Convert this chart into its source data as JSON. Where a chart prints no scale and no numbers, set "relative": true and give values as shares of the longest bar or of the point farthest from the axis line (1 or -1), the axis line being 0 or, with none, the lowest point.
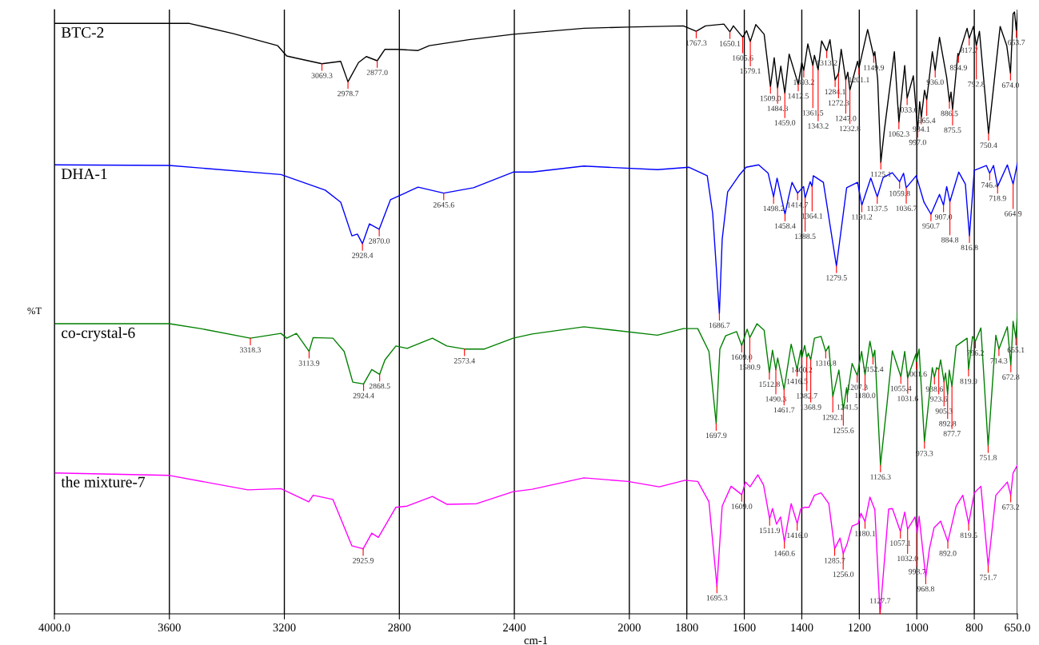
{
  "chart_data": {
    "type": "line",
    "relative": true,
    "xlabel": "cm-1",
    "ylabel": "%T",
    "xlim": [
      4000,
      650
    ],
    "xticks": [
      {
        "value": 4000,
        "label": "4000.0"
      },
      3600,
      3200,
      2800,
      2400,
      2000,
      1800,
      1600,
      1400,
      1200,
      1000,
      800,
      {
        "value": 650,
        "label": "650.0"
      }
    ],
    "grid": "x",
    "legend": false,
    "marker": "none",
    "line_style": "solid",
    "series": [
      {
        "name": "BTC-2",
        "color": "#000000",
        "x": [
          4000,
          3530,
          3377,
          3223,
          3192,
          3165,
          3069.3,
          3004,
          2978.7,
          2942,
          2915,
          2877.0,
          2850,
          2808,
          2735,
          2696,
          2558,
          2404,
          2158,
          2004,
          1812,
          1767.3,
          1735,
          1671,
          1650.1,
          1638,
          1605.6,
          1592,
          1579.1,
          1560,
          1531,
          1509.0,
          1496,
          1484.3,
          1473,
          1459.0,
          1444,
          1412.5,
          1400,
          1393.2,
          1379,
          1361.5,
          1356,
          1343.2,
          1331,
          1313.2,
          1302,
          1284.1,
          1272.3,
          1263,
          1247.0,
          1240,
          1232.8,
          1206,
          1201.1,
          1171,
          1149.9,
          1146,
          1136,
          1125.1,
          1113,
          1078,
          1062.3,
          1042,
          1033.6,
          1012,
          997.0,
          990,
          984.1,
          973,
          965.4,
          946,
          936.0,
          921,
          896,
          886.5,
          881,
          875.5,
          857,
          854.9,
          825,
          817.7,
          803,
          792.8,
          782,
          750.4,
          710,
          687,
          674.0,
          665,
          660,
          653.7,
          650
        ],
        "values": [
          0.981,
          0.981,
          0.964,
          0.944,
          0.927,
          0.924,
          0.914,
          0.918,
          0.884,
          0.916,
          0.926,
          0.919,
          0.938,
          0.938,
          0.936,
          0.944,
          0.954,
          0.963,
          0.973,
          0.975,
          0.977,
          0.968,
          0.977,
          0.98,
          0.967,
          0.977,
          0.958,
          0.969,
          0.951,
          0.979,
          0.963,
          0.876,
          0.924,
          0.874,
          0.91,
          0.865,
          0.93,
          0.88,
          0.916,
          0.903,
          0.947,
          0.911,
          0.928,
          0.904,
          0.952,
          0.935,
          0.954,
          0.887,
          0.898,
          0.938,
          0.887,
          0.9,
          0.87,
          0.918,
          0.907,
          0.971,
          0.927,
          0.934,
          0.887,
          0.75,
          0.803,
          0.934,
          0.817,
          0.911,
          0.857,
          0.894,
          0.803,
          0.851,
          0.825,
          0.87,
          0.854,
          0.934,
          0.903,
          0.958,
          0.891,
          0.851,
          0.867,
          0.838,
          0.931,
          0.927,
          0.973,
          0.956,
          0.976,
          0.944,
          0.968,
          0.798,
          0.976,
          0.944,
          0.898,
          0.997,
          1.0,
          0.969,
          0.997
        ]
      },
      {
        "name": "DHA-1",
        "color": "#0000ff",
        "x": [
          4000,
          3600,
          3212,
          3058,
          3004,
          2965,
          2946,
          2928.4,
          2904,
          2870.0,
          2831,
          2735,
          2645.6,
          2542,
          2404,
          2338,
          2158,
          1902,
          1792,
          1729,
          1710,
          1686.7,
          1677,
          1658,
          1619,
          1594,
          1550,
          1517,
          1498.2,
          1486,
          1458.4,
          1446,
          1434,
          1414.7,
          1394,
          1388.5,
          1371,
          1364.1,
          1360,
          1325,
          1279.5,
          1244,
          1206,
          1191.2,
          1160,
          1137.5,
          1117,
          1085,
          1059.8,
          1046,
          1036.7,
          1002,
          975,
          950.7,
          921,
          907.0,
          896,
          884.8,
          854,
          831,
          816.8,
          800,
          758,
          746.4,
          733,
          718.9,
          685,
          664.9,
          650
        ],
        "values": [
          0.746,
          0.745,
          0.73,
          0.704,
          0.684,
          0.628,
          0.631,
          0.615,
          0.648,
          0.639,
          0.688,
          0.709,
          0.699,
          0.708,
          0.734,
          0.734,
          0.744,
          0.738,
          0.742,
          0.728,
          0.665,
          0.499,
          0.622,
          0.701,
          0.728,
          0.742,
          0.746,
          0.732,
          0.693,
          0.724,
          0.664,
          0.692,
          0.717,
          0.699,
          0.71,
          0.691,
          0.718,
          0.71,
          0.728,
          0.717,
          0.578,
          0.708,
          0.717,
          0.679,
          0.724,
          0.693,
          0.725,
          0.733,
          0.718,
          0.732,
          0.708,
          0.728,
          0.684,
          0.664,
          0.697,
          0.679,
          0.71,
          0.685,
          0.734,
          0.714,
          0.628,
          0.737,
          0.745,
          0.732,
          0.745,
          0.71,
          0.746,
          0.714,
          0.749
        ]
      },
      {
        "name": "co-crystal-6",
        "color": "#008000",
        "x": [
          4000,
          3600,
          3492,
          3318.3,
          3212,
          3192,
          3158,
          3113.9,
          3100,
          3031,
          2992,
          2962,
          2924.4,
          2896,
          2868.5,
          2850,
          2812,
          2773,
          2685,
          2635,
          2573.4,
          2504,
          2404,
          2338,
          2158,
          1902,
          1812,
          1762,
          1723,
          1697.9,
          1685,
          1665,
          1627,
          1609.0,
          1590,
          1580.9,
          1556,
          1531,
          1512.8,
          1502,
          1490.3,
          1484,
          1461.7,
          1437,
          1416.5,
          1404,
          1400.2,
          1390,
          1382.7,
          1377,
          1368.9,
          1356,
          1333,
          1316.8,
          1306,
          1292.1,
          1271,
          1255.6,
          1244,
          1241.5,
          1225,
          1207.3,
          1192,
          1180.0,
          1163,
          1152.4,
          1146,
          1126.3,
          1104,
          1085,
          1055.4,
          1042,
          1031.6,
          1003,
          1001.6,
          992,
          973.3,
          946,
          938.6,
          931,
          923.6,
          917,
          905.3,
          900,
          892.8,
          887,
          877.7,
          863,
          825,
          819.9,
          806,
          796.2,
          777,
          751.8,
          725,
          714.3,
          685,
          672.8,
          665,
          655.1,
          650
        ],
        "values": [
          0.482,
          0.482,
          0.474,
          0.458,
          0.466,
          0.458,
          0.466,
          0.436,
          0.459,
          0.458,
          0.436,
          0.385,
          0.382,
          0.406,
          0.398,
          0.422,
          0.445,
          0.441,
          0.458,
          0.445,
          0.44,
          0.44,
          0.458,
          0.465,
          0.477,
          0.463,
          0.474,
          0.474,
          0.436,
          0.316,
          0.44,
          0.462,
          0.469,
          0.446,
          0.473,
          0.459,
          0.482,
          0.471,
          0.401,
          0.438,
          0.406,
          0.425,
          0.373,
          0.448,
          0.406,
          0.438,
          0.425,
          0.446,
          0.426,
          0.433,
          0.422,
          0.458,
          0.461,
          0.436,
          0.445,
          0.361,
          0.405,
          0.339,
          0.376,
          0.363,
          0.416,
          0.396,
          0.436,
          0.397,
          0.453,
          0.426,
          0.438,
          0.247,
          0.347,
          0.437,
          0.394,
          0.436,
          0.392,
          0.432,
          0.418,
          0.44,
          0.286,
          0.409,
          0.393,
          0.409,
          0.406,
          0.422,
          0.386,
          0.4,
          0.365,
          0.405,
          0.378,
          0.445,
          0.458,
          0.406,
          0.461,
          0.453,
          0.475,
          0.279,
          0.463,
          0.44,
          0.477,
          0.413,
          0.486,
          0.458,
          0.499
        ]
      },
      {
        "name": "the mixture-7",
        "color": "#ff00ff",
        "x": [
          4000,
          3600,
          3327,
          3212,
          3115,
          3100,
          3031,
          2965,
          2925.9,
          2896,
          2873,
          2812,
          2773,
          2685,
          2635,
          2531,
          2404,
          2338,
          2158,
          2004,
          1896,
          1806,
          1762,
          1723,
          1695.3,
          1677,
          1646,
          1609.0,
          1596,
          1580,
          1553,
          1533,
          1511.9,
          1502,
          1488,
          1474,
          1460.6,
          1437,
          1416.0,
          1404,
          1390,
          1375,
          1356,
          1333,
          1306,
          1285.7,
          1267,
          1256.0,
          1242,
          1225,
          1204,
          1194,
          1180.1,
          1163,
          1146,
          1127.7,
          1098,
          1085,
          1057.1,
          1042,
          1032.0,
          1006,
          998.7,
          992,
          968.8,
          956,
          940,
          917,
          892.0,
          863,
          840,
          819.5,
          800,
          777,
          751.7,
          725,
          685,
          673.2,
          665,
          650
        ],
        "values": [
          0.234,
          0.23,
          0.206,
          0.208,
          0.186,
          0.197,
          0.19,
          0.113,
          0.108,
          0.134,
          0.127,
          0.177,
          0.179,
          0.195,
          0.182,
          0.183,
          0.203,
          0.207,
          0.226,
          0.22,
          0.211,
          0.222,
          0.22,
          0.186,
          0.046,
          0.179,
          0.212,
          0.198,
          0.219,
          0.211,
          0.231,
          0.214,
          0.158,
          0.175,
          0.149,
          0.161,
          0.12,
          0.183,
          0.15,
          0.174,
          0.177,
          0.177,
          0.197,
          0.201,
          0.183,
          0.108,
          0.126,
          0.1,
          0.117,
          0.146,
          0.15,
          0.167,
          0.153,
          0.194,
          0.173,
          0,
          0.174,
          0.175,
          0.137,
          0.169,
          0.141,
          0.161,
          0.134,
          0.162,
          0.061,
          0.108,
          0.143,
          0.154,
          0.12,
          0.179,
          0.197,
          0.15,
          0.201,
          0.212,
          0.08,
          0.197,
          0.219,
          0.197,
          0.234,
          0.247
        ]
      }
    ],
    "annotations": [
      {
        "text": "3069.3",
        "x": 3069.3,
        "y": 0.914
      },
      {
        "text": "2978.7",
        "x": 2978.7,
        "y": 0.884
      },
      {
        "text": "2877.0",
        "x": 2877.0,
        "y": 0.919
      },
      {
        "text": "1767.3",
        "x": 1767.3,
        "y": 0.968
      },
      {
        "text": "1650.1",
        "x": 1650.1,
        "y": 0.967
      },
      {
        "text": "1605.6",
        "x": 1605.6,
        "y": 0.958
      },
      {
        "text": "1579.1",
        "x": 1579.1,
        "y": 0.951
      },
      {
        "text": "1509.0",
        "x": 1509.0,
        "y": 0.876
      },
      {
        "text": "1484.3",
        "x": 1484.3,
        "y": 0.874
      },
      {
        "text": "1459.0",
        "x": 1459.0,
        "y": 0.865
      },
      {
        "text": "1412.5",
        "x": 1412.5,
        "y": 0.88
      },
      {
        "text": "1393.2",
        "x": 1393.2,
        "y": 0.903
      },
      {
        "text": "1361.5",
        "x": 1361.5,
        "y": 0.911
      },
      {
        "text": "1343.2",
        "x": 1343.2,
        "y": 0.904
      },
      {
        "text": "1313.2",
        "x": 1313.2,
        "y": 0.935
      },
      {
        "text": "1284.1",
        "x": 1284.1,
        "y": 0.887
      },
      {
        "text": "1272.3",
        "x": 1272.3,
        "y": 0.898
      },
      {
        "text": "1247.0",
        "x": 1247.0,
        "y": 0.887
      },
      {
        "text": "1232.8",
        "x": 1232.8,
        "y": 0.87
      },
      {
        "text": "1201.1",
        "x": 1201.1,
        "y": 0.907
      },
      {
        "text": "1149.9",
        "x": 1149.9,
        "y": 0.927
      },
      {
        "text": "1125.1",
        "x": 1125.1,
        "y": 0.75
      },
      {
        "text": "1062.3",
        "x": 1062.3,
        "y": 0.817
      },
      {
        "text": "1033.6",
        "x": 1033.6,
        "y": 0.857
      },
      {
        "text": "997.0",
        "x": 997.0,
        "y": 0.803
      },
      {
        "text": "984.1",
        "x": 984.1,
        "y": 0.825
      },
      {
        "text": "965.4",
        "x": 965.4,
        "y": 0.854
      },
      {
        "text": "936.0",
        "x": 936.0,
        "y": 0.903
      },
      {
        "text": "886.5",
        "x": 886.5,
        "y": 0.851
      },
      {
        "text": "875.5",
        "x": 875.5,
        "y": 0.838
      },
      {
        "text": "854.9",
        "x": 854.9,
        "y": 0.927
      },
      {
        "text": "817.7",
        "x": 817.7,
        "y": 0.956
      },
      {
        "text": "792.8",
        "x": 792.8,
        "y": 0.944
      },
      {
        "text": "750.4",
        "x": 750.4,
        "y": 0.798
      },
      {
        "text": "674.0",
        "x": 674.0,
        "y": 0.898
      },
      {
        "text": "653.7",
        "x": 653.7,
        "y": 0.969
      },
      {
        "text": "2928.4",
        "x": 2928.4,
        "y": 0.615
      },
      {
        "text": "2870.0",
        "x": 2870.0,
        "y": 0.639
      },
      {
        "text": "2645.6",
        "x": 2645.6,
        "y": 0.699
      },
      {
        "text": "1686.7",
        "x": 1686.7,
        "y": 0.499
      },
      {
        "text": "1498.2",
        "x": 1498.2,
        "y": 0.693
      },
      {
        "text": "1458.4",
        "x": 1458.4,
        "y": 0.664
      },
      {
        "text": "1414.7",
        "x": 1414.7,
        "y": 0.699
      },
      {
        "text": "1388.5",
        "x": 1388.5,
        "y": 0.691
      },
      {
        "text": "1364.1",
        "x": 1364.1,
        "y": 0.71
      },
      {
        "text": "1279.5",
        "x": 1279.5,
        "y": 0.578
      },
      {
        "text": "1191.2",
        "x": 1191.2,
        "y": 0.679
      },
      {
        "text": "1137.5",
        "x": 1137.5,
        "y": 0.693
      },
      {
        "text": "1059.8",
        "x": 1059.8,
        "y": 0.718
      },
      {
        "text": "1036.7",
        "x": 1036.7,
        "y": 0.708
      },
      {
        "text": "950.7",
        "x": 950.7,
        "y": 0.664
      },
      {
        "text": "907.0",
        "x": 907.0,
        "y": 0.679
      },
      {
        "text": "884.8",
        "x": 884.8,
        "y": 0.685
      },
      {
        "text": "816.8",
        "x": 816.8,
        "y": 0.628
      },
      {
        "text": "746.4",
        "x": 746.4,
        "y": 0.732
      },
      {
        "text": "718.9",
        "x": 718.9,
        "y": 0.71
      },
      {
        "text": "664.9",
        "x": 664.9,
        "y": 0.714
      },
      {
        "text": "3318.3",
        "x": 3318.3,
        "y": 0.458
      },
      {
        "text": "3113.9",
        "x": 3113.9,
        "y": 0.436
      },
      {
        "text": "2924.4",
        "x": 2924.4,
        "y": 0.382
      },
      {
        "text": "2868.5",
        "x": 2868.5,
        "y": 0.398
      },
      {
        "text": "2573.4",
        "x": 2573.4,
        "y": 0.44
      },
      {
        "text": "1697.9",
        "x": 1697.9,
        "y": 0.316
      },
      {
        "text": "1609.0",
        "x": 1609.0,
        "y": 0.446
      },
      {
        "text": "1580.9",
        "x": 1580.9,
        "y": 0.459
      },
      {
        "text": "1512.8",
        "x": 1512.8,
        "y": 0.401
      },
      {
        "text": "1490.3",
        "x": 1490.3,
        "y": 0.406
      },
      {
        "text": "1461.7",
        "x": 1461.7,
        "y": 0.373
      },
      {
        "text": "1416.5",
        "x": 1416.5,
        "y": 0.406
      },
      {
        "text": "1400.2",
        "x": 1400.2,
        "y": 0.425
      },
      {
        "text": "1382.7",
        "x": 1382.7,
        "y": 0.426
      },
      {
        "text": "1368.9",
        "x": 1368.9,
        "y": 0.422
      },
      {
        "text": "1316.8",
        "x": 1316.8,
        "y": 0.436
      },
      {
        "text": "1292.1",
        "x": 1292.1,
        "y": 0.361
      },
      {
        "text": "1255.6",
        "x": 1255.6,
        "y": 0.339
      },
      {
        "text": "1241.5",
        "x": 1241.5,
        "y": 0.363
      },
      {
        "text": "1207.3",
        "x": 1207.3,
        "y": 0.396
      },
      {
        "text": "1180.0",
        "x": 1180.0,
        "y": 0.397
      },
      {
        "text": "1152.4",
        "x": 1152.4,
        "y": 0.426
      },
      {
        "text": "1126.3",
        "x": 1126.3,
        "y": 0.247
      },
      {
        "text": "1055.4",
        "x": 1055.4,
        "y": 0.394
      },
      {
        "text": "1031.6",
        "x": 1031.6,
        "y": 0.392
      },
      {
        "text": "1001.6",
        "x": 1001.6,
        "y": 0.418
      },
      {
        "text": "973.3",
        "x": 973.3,
        "y": 0.286
      },
      {
        "text": "938.6",
        "x": 938.6,
        "y": 0.393
      },
      {
        "text": "923.6",
        "x": 923.6,
        "y": 0.406
      },
      {
        "text": "905.3",
        "x": 905.3,
        "y": 0.386
      },
      {
        "text": "892.8",
        "x": 892.8,
        "y": 0.365
      },
      {
        "text": "877.7",
        "x": 877.7,
        "y": 0.378
      },
      {
        "text": "819.9",
        "x": 819.9,
        "y": 0.406
      },
      {
        "text": "796.2",
        "x": 796.2,
        "y": 0.453
      },
      {
        "text": "751.8",
        "x": 751.8,
        "y": 0.279
      },
      {
        "text": "714.3",
        "x": 714.3,
        "y": 0.44
      },
      {
        "text": "672.8",
        "x": 672.8,
        "y": 0.413
      },
      {
        "text": "655.1",
        "x": 655.1,
        "y": 0.458
      },
      {
        "text": "2925.9",
        "x": 2925.9,
        "y": 0.108
      },
      {
        "text": "1695.3",
        "x": 1695.3,
        "y": 0.046
      },
      {
        "text": "1609.0",
        "x": 1609.0,
        "y": 0.198
      },
      {
        "text": "1511.9",
        "x": 1511.9,
        "y": 0.158
      },
      {
        "text": "1460.6",
        "x": 1460.6,
        "y": 0.12
      },
      {
        "text": "1416.0",
        "x": 1416.0,
        "y": 0.15
      },
      {
        "text": "1285.7",
        "x": 1285.7,
        "y": 0.108
      },
      {
        "text": "1256.0",
        "x": 1256.0,
        "y": 0.1
      },
      {
        "text": "1180.1",
        "x": 1180.1,
        "y": 0.153
      },
      {
        "text": "1127.7",
        "x": 1127.7,
        "y": 0
      },
      {
        "text": "1057.1",
        "x": 1057.1,
        "y": 0.137
      },
      {
        "text": "1032.0",
        "x": 1032.0,
        "y": 0.141
      },
      {
        "text": "998.7",
        "x": 998.7,
        "y": 0.134
      },
      {
        "text": "968.8",
        "x": 968.8,
        "y": 0.061
      },
      {
        "text": "892.0",
        "x": 892.0,
        "y": 0.12
      },
      {
        "text": "819.5",
        "x": 819.5,
        "y": 0.15
      },
      {
        "text": "751.7",
        "x": 751.7,
        "y": 0.08
      },
      {
        "text": "673.2",
        "x": 673.2,
        "y": 0.197
      }
    ]
  }
}
